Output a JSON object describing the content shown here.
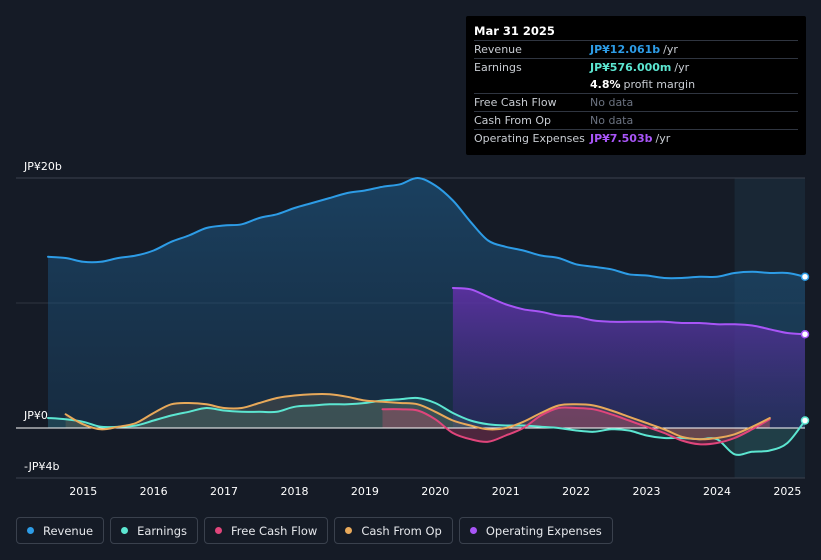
{
  "tooltip": {
    "date": "Mar 31 2025",
    "rows": [
      {
        "label": "Revenue",
        "value": "JP¥12.061b",
        "unit": "/yr",
        "color": "#2d9ce6"
      },
      {
        "label": "Earnings",
        "value": "JP¥576.000m",
        "unit": "/yr",
        "color": "#5ce6d1"
      },
      {
        "label": "",
        "value": "4.8%",
        "unit": "profit margin",
        "color": "#ffffff"
      },
      {
        "label": "Free Cash Flow",
        "value": "No data",
        "unit": "",
        "color": "#6b7280"
      },
      {
        "label": "Cash From Op",
        "value": "No data",
        "unit": "",
        "color": "#6b7280"
      },
      {
        "label": "Operating Expenses",
        "value": "JP¥7.503b",
        "unit": "/yr",
        "color": "#a855f7"
      }
    ]
  },
  "legend": [
    {
      "label": "Revenue",
      "color": "#2d9ce6"
    },
    {
      "label": "Earnings",
      "color": "#5ce6d1"
    },
    {
      "label": "Free Cash Flow",
      "color": "#e0457b"
    },
    {
      "label": "Cash From Op",
      "color": "#e8a95a"
    },
    {
      "label": "Operating Expenses",
      "color": "#a855f7"
    }
  ],
  "chart_data": {
    "type": "area",
    "title": "",
    "y_tick_labels": [
      "JP¥20b",
      "JP¥0",
      "-JP¥4b"
    ],
    "y_ticks": [
      20,
      0,
      -4
    ],
    "ylim": [
      -4,
      20
    ],
    "xlim": [
      2014.5,
      2025.25
    ],
    "x_tick_labels": [
      "2015",
      "2016",
      "2017",
      "2018",
      "2019",
      "2020",
      "2021",
      "2022",
      "2023",
      "2024",
      "2025"
    ],
    "x_ticks": [
      2015,
      2016,
      2017,
      2018,
      2019,
      2020,
      2021,
      2022,
      2023,
      2024,
      2025
    ],
    "forecast_start": 2024.25,
    "series": [
      {
        "name": "Revenue",
        "color": "#2d9ce6",
        "x": [
          2014.5,
          2014.75,
          2015.0,
          2015.25,
          2015.5,
          2015.75,
          2016.0,
          2016.25,
          2016.5,
          2016.75,
          2017.0,
          2017.25,
          2017.5,
          2017.75,
          2018.0,
          2018.25,
          2018.5,
          2018.75,
          2019.0,
          2019.25,
          2019.5,
          2019.75,
          2020.0,
          2020.25,
          2020.5,
          2020.75,
          2021.0,
          2021.25,
          2021.5,
          2021.75,
          2022.0,
          2022.25,
          2022.5,
          2022.75,
          2023.0,
          2023.25,
          2023.5,
          2023.75,
          2024.0,
          2024.25,
          2024.5,
          2024.75,
          2025.0,
          2025.25
        ],
        "values": [
          13.7,
          13.6,
          13.3,
          13.3,
          13.6,
          13.8,
          14.2,
          14.9,
          15.4,
          16.0,
          16.2,
          16.3,
          16.8,
          17.1,
          17.6,
          18.0,
          18.4,
          18.8,
          19.0,
          19.3,
          19.5,
          20.0,
          19.4,
          18.2,
          16.5,
          15.0,
          14.5,
          14.2,
          13.8,
          13.6,
          13.1,
          12.9,
          12.7,
          12.3,
          12.2,
          12.0,
          12.0,
          12.1,
          12.1,
          12.4,
          12.5,
          12.4,
          12.4,
          12.1
        ]
      },
      {
        "name": "Operating Expenses",
        "color": "#a855f7",
        "x": [
          2020.25,
          2020.5,
          2020.75,
          2021.0,
          2021.25,
          2021.5,
          2021.75,
          2022.0,
          2022.25,
          2022.5,
          2022.75,
          2023.0,
          2023.25,
          2023.5,
          2023.75,
          2024.0,
          2024.25,
          2024.5,
          2024.75,
          2025.0,
          2025.25
        ],
        "values": [
          11.2,
          11.1,
          10.5,
          9.9,
          9.5,
          9.3,
          9.0,
          8.9,
          8.6,
          8.5,
          8.5,
          8.5,
          8.5,
          8.4,
          8.4,
          8.3,
          8.3,
          8.2,
          7.9,
          7.6,
          7.5
        ]
      },
      {
        "name": "Earnings",
        "color": "#5ce6d1",
        "x": [
          2014.5,
          2014.75,
          2015.0,
          2015.25,
          2015.5,
          2015.75,
          2016.0,
          2016.25,
          2016.5,
          2016.75,
          2017.0,
          2017.25,
          2017.5,
          2017.75,
          2018.0,
          2018.25,
          2018.5,
          2018.75,
          2019.0,
          2019.25,
          2019.5,
          2019.75,
          2020.0,
          2020.25,
          2020.5,
          2020.75,
          2021.0,
          2021.25,
          2021.5,
          2021.75,
          2022.0,
          2022.25,
          2022.5,
          2022.75,
          2023.0,
          2023.25,
          2023.5,
          2023.75,
          2024.0,
          2024.25,
          2024.5,
          2024.75,
          2025.0,
          2025.25
        ],
        "values": [
          0.8,
          0.7,
          0.5,
          0.1,
          0.1,
          0.2,
          0.6,
          1.0,
          1.3,
          1.6,
          1.4,
          1.3,
          1.3,
          1.3,
          1.7,
          1.8,
          1.9,
          1.9,
          2.0,
          2.2,
          2.3,
          2.4,
          2.0,
          1.2,
          0.6,
          0.3,
          0.2,
          0.2,
          0.1,
          0.0,
          -0.2,
          -0.3,
          -0.1,
          -0.2,
          -0.6,
          -0.8,
          -0.8,
          -0.9,
          -0.9,
          -2.1,
          -1.9,
          -1.8,
          -1.2,
          0.6
        ]
      },
      {
        "name": "Free Cash Flow",
        "color": "#e0457b",
        "x": [
          2019.25,
          2019.5,
          2019.75,
          2020.0,
          2020.25,
          2020.5,
          2020.75,
          2021.0,
          2021.25,
          2021.5,
          2021.75,
          2022.0,
          2022.25,
          2022.5,
          2022.75,
          2023.0,
          2023.25,
          2023.5,
          2023.75,
          2024.0,
          2024.25,
          2024.5,
          2024.75
        ],
        "values": [
          1.5,
          1.5,
          1.4,
          0.7,
          -0.4,
          -0.9,
          -1.1,
          -0.6,
          0.0,
          1.0,
          1.6,
          1.6,
          1.5,
          1.1,
          0.6,
          0.1,
          -0.4,
          -1.0,
          -1.3,
          -1.2,
          -0.8,
          -0.1,
          0.7
        ]
      },
      {
        "name": "Cash From Op",
        "color": "#e8a95a",
        "x": [
          2014.75,
          2015.0,
          2015.25,
          2015.5,
          2015.75,
          2016.0,
          2016.25,
          2016.5,
          2016.75,
          2017.0,
          2017.25,
          2017.5,
          2017.75,
          2018.0,
          2018.25,
          2018.5,
          2018.75,
          2019.0,
          2019.25,
          2019.5,
          2019.75,
          2020.0,
          2020.25,
          2020.5,
          2020.75,
          2021.0,
          2021.25,
          2021.5,
          2021.75,
          2022.0,
          2022.25,
          2022.5,
          2022.75,
          2023.0,
          2023.25,
          2023.5,
          2023.75,
          2024.0,
          2024.25,
          2024.5,
          2024.75
        ],
        "values": [
          1.1,
          0.3,
          -0.1,
          0.1,
          0.4,
          1.2,
          1.9,
          2.0,
          1.9,
          1.6,
          1.6,
          2.0,
          2.4,
          2.6,
          2.7,
          2.7,
          2.5,
          2.2,
          2.1,
          2.0,
          1.9,
          1.3,
          0.6,
          0.2,
          -0.1,
          0.0,
          0.5,
          1.2,
          1.8,
          1.9,
          1.8,
          1.4,
          0.9,
          0.4,
          -0.1,
          -0.7,
          -0.9,
          -0.8,
          -0.5,
          0.1,
          0.8
        ]
      }
    ]
  }
}
